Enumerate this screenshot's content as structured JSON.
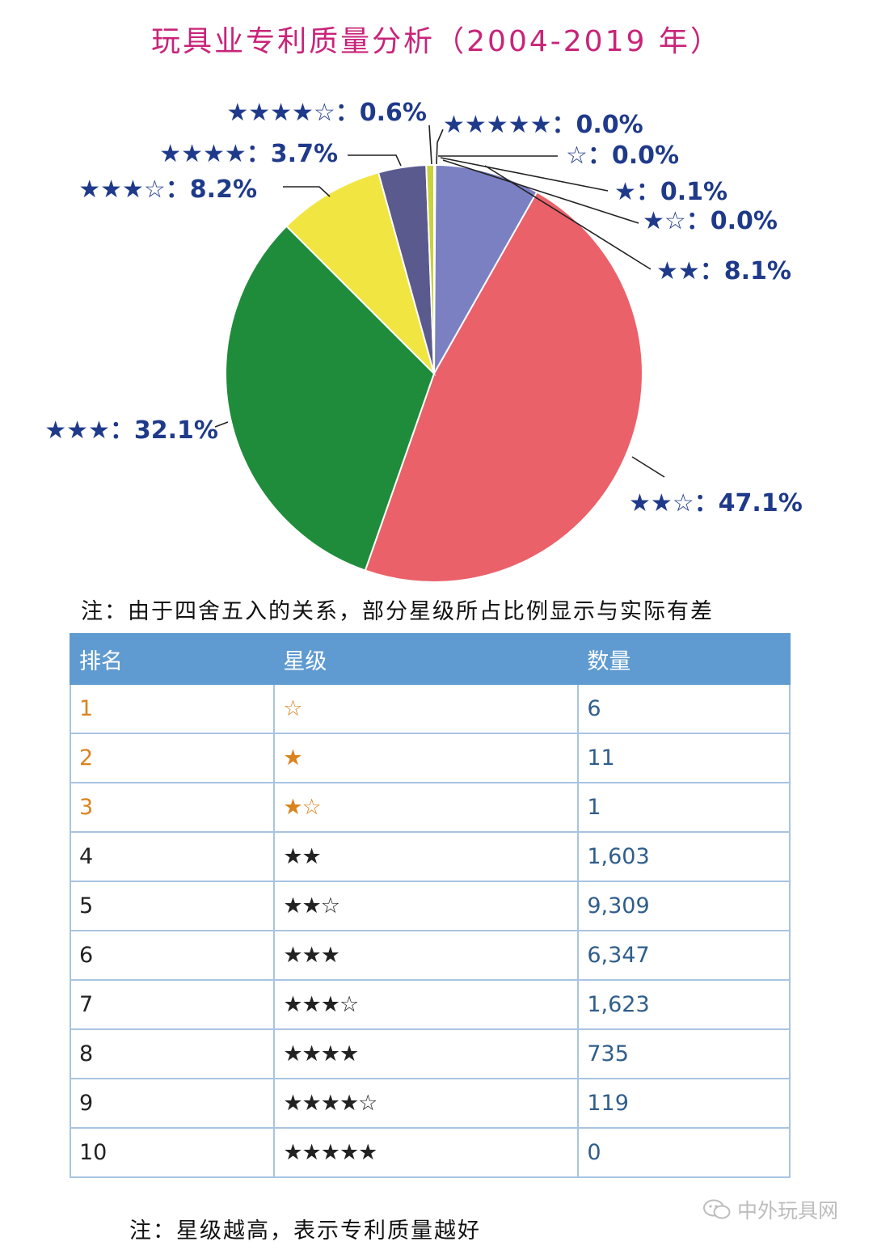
{
  "title": "玩具业专利质量分析（2004-2019 年）",
  "note1": "注：由于四舍五入的关系，部分星级所占比例显示与实际有差",
  "note2": "注：星级越高，表示专利质量越好",
  "watermark": "中外玩具网",
  "chart_data": {
    "type": "pie",
    "title": "玩具业专利质量分析（2004-2019 年）",
    "slices": [
      {
        "label": "★★★★★：0.0%",
        "value": 0.0,
        "color": "#8a8a8a"
      },
      {
        "label": "☆：0.0%",
        "value": 0.0,
        "color": "#8a8a8a"
      },
      {
        "label": "★：0.1%",
        "value": 0.1,
        "color": "#8a8a8a"
      },
      {
        "label": "★☆：0.0%",
        "value": 0.0,
        "color": "#8a8a8a"
      },
      {
        "label": "★★：8.1%",
        "value": 8.1,
        "color": "#7a80c2"
      },
      {
        "label": "★★☆：47.1%",
        "value": 47.1,
        "color": "#ea616a"
      },
      {
        "label": "★★★：32.1%",
        "value": 32.1,
        "color": "#1f8c3b"
      },
      {
        "label": "★★★☆：8.2%",
        "value": 8.2,
        "color": "#f1e641"
      },
      {
        "label": "★★★★：3.7%",
        "value": 3.7,
        "color": "#5b5a8e"
      },
      {
        "label": "★★★★☆：0.6%",
        "value": 0.6,
        "color": "#c8d23c"
      }
    ]
  },
  "table": {
    "headers": [
      "排名",
      "星级",
      "数量"
    ],
    "rows": [
      {
        "rank": "1",
        "stars": "☆",
        "count": "6",
        "highlight": true
      },
      {
        "rank": "2",
        "stars": "★",
        "count": "11",
        "highlight": true
      },
      {
        "rank": "3",
        "stars": "★☆",
        "count": "1",
        "highlight": true
      },
      {
        "rank": "4",
        "stars": "★★",
        "count": "1,603",
        "highlight": false
      },
      {
        "rank": "5",
        "stars": "★★☆",
        "count": "9,309",
        "highlight": false
      },
      {
        "rank": "6",
        "stars": "★★★",
        "count": "6,347",
        "highlight": false
      },
      {
        "rank": "7",
        "stars": "★★★☆",
        "count": "1,623",
        "highlight": false
      },
      {
        "rank": "8",
        "stars": "★★★★",
        "count": "735",
        "highlight": false
      },
      {
        "rank": "9",
        "stars": "★★★★☆",
        "count": "119",
        "highlight": false
      },
      {
        "rank": "10",
        "stars": "★★★★★",
        "count": "0",
        "highlight": false
      }
    ]
  },
  "colors": {
    "title": "#c8247a",
    "label": "#1f3a8a",
    "header_bg": "#5f9bd0",
    "highlight": "#d9831f",
    "count_text": "#2f5e8c"
  }
}
